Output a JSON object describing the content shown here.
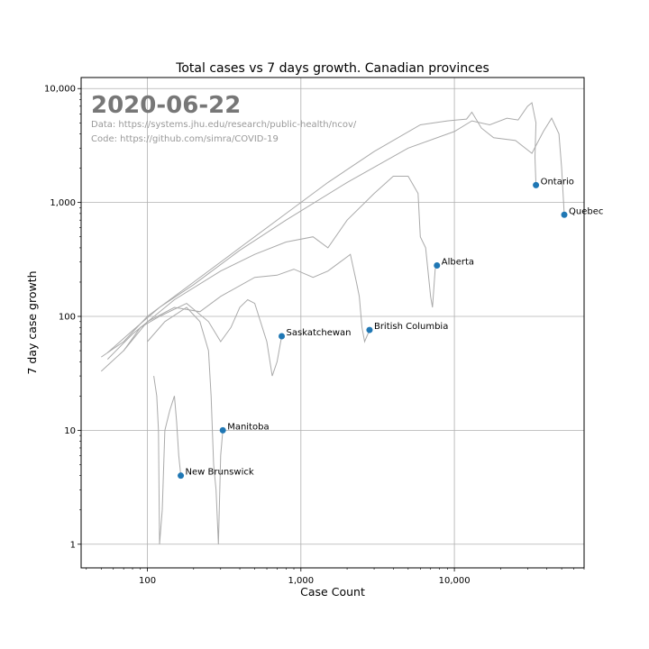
{
  "chart_data": {
    "type": "scatter",
    "title": "Total cases vs 7 days growth. Canadian provinces",
    "xlabel": "Case Count",
    "ylabel": "7 day case growth",
    "xscale": "log",
    "yscale": "log",
    "xlim": [
      37,
      70000
    ],
    "ylim": [
      0.62,
      12500
    ],
    "grid": true,
    "xticks": [
      {
        "value": 100,
        "label": "100"
      },
      {
        "value": 1000,
        "label": "1,000"
      },
      {
        "value": 10000,
        "label": "10,000"
      }
    ],
    "yticks": [
      {
        "value": 1,
        "label": "1"
      },
      {
        "value": 10,
        "label": "10"
      },
      {
        "value": 100,
        "label": "100"
      },
      {
        "value": 1000,
        "label": "1,000"
      },
      {
        "value": 10000,
        "label": "10,000"
      }
    ],
    "annotation": {
      "date": "2020-06-22",
      "data_source": "Data: https://systems.jhu.edu/research/public-health/ncov/",
      "code_source": "Code: https://github.com/simra/COVID-19"
    },
    "points": [
      {
        "name": "Ontario",
        "x": 34000,
        "y": 1420
      },
      {
        "name": "Quebec",
        "x": 52000,
        "y": 780
      },
      {
        "name": "Alberta",
        "x": 7700,
        "y": 280
      },
      {
        "name": "British Columbia",
        "x": 2800,
        "y": 76
      },
      {
        "name": "Saskatchewan",
        "x": 750,
        "y": 67
      },
      {
        "name": "Manitoba",
        "x": 310,
        "y": 10
      },
      {
        "name": "New Brunswick",
        "x": 165,
        "y": 4
      }
    ],
    "trajectories": [
      {
        "name": "Ontario",
        "points": [
          [
            55,
            48
          ],
          [
            80,
            75
          ],
          [
            120,
            120
          ],
          [
            200,
            190
          ],
          [
            400,
            380
          ],
          [
            800,
            700
          ],
          [
            2000,
            1500
          ],
          [
            5000,
            3000
          ],
          [
            10000,
            4200
          ],
          [
            13000,
            5200
          ],
          [
            17000,
            4800
          ],
          [
            22000,
            5500
          ],
          [
            26000,
            5300
          ],
          [
            30000,
            7000
          ],
          [
            32000,
            7500
          ],
          [
            34000,
            5000
          ],
          [
            33500,
            2500
          ],
          [
            34000,
            1420
          ]
        ]
      },
      {
        "name": "Quebec",
        "points": [
          [
            50,
            44
          ],
          [
            70,
            60
          ],
          [
            100,
            100
          ],
          [
            200,
            200
          ],
          [
            400,
            400
          ],
          [
            800,
            800
          ],
          [
            1500,
            1500
          ],
          [
            3000,
            2800
          ],
          [
            6000,
            4800
          ],
          [
            9000,
            5200
          ],
          [
            12000,
            5400
          ],
          [
            13000,
            6200
          ],
          [
            15000,
            4500
          ],
          [
            18000,
            3700
          ],
          [
            25000,
            3500
          ],
          [
            32000,
            2700
          ],
          [
            38000,
            4200
          ],
          [
            43000,
            5500
          ],
          [
            48000,
            4000
          ],
          [
            50000,
            2000
          ],
          [
            52000,
            780
          ]
        ]
      },
      {
        "name": "Alberta",
        "points": [
          [
            55,
            42
          ],
          [
            80,
            70
          ],
          [
            150,
            140
          ],
          [
            300,
            250
          ],
          [
            500,
            350
          ],
          [
            800,
            450
          ],
          [
            1200,
            500
          ],
          [
            1500,
            400
          ],
          [
            2000,
            700
          ],
          [
            3000,
            1200
          ],
          [
            4000,
            1700
          ],
          [
            5000,
            1700
          ],
          [
            5800,
            1200
          ],
          [
            6000,
            500
          ],
          [
            6500,
            400
          ],
          [
            7000,
            150
          ],
          [
            7200,
            120
          ],
          [
            7500,
            260
          ],
          [
            7700,
            280
          ]
        ]
      },
      {
        "name": "British Columbia",
        "points": [
          [
            50,
            33
          ],
          [
            70,
            50
          ],
          [
            100,
            90
          ],
          [
            150,
            120
          ],
          [
            220,
            110
          ],
          [
            300,
            150
          ],
          [
            500,
            220
          ],
          [
            700,
            230
          ],
          [
            900,
            260
          ],
          [
            1200,
            220
          ],
          [
            1500,
            250
          ],
          [
            1800,
            300
          ],
          [
            2100,
            350
          ],
          [
            2300,
            200
          ],
          [
            2400,
            150
          ],
          [
            2500,
            80
          ],
          [
            2600,
            60
          ],
          [
            2800,
            76
          ]
        ]
      },
      {
        "name": "Saskatchewan",
        "points": [
          [
            70,
            50
          ],
          [
            90,
            80
          ],
          [
            120,
            100
          ],
          [
            180,
            130
          ],
          [
            250,
            90
          ],
          [
            300,
            60
          ],
          [
            350,
            80
          ],
          [
            400,
            120
          ],
          [
            450,
            140
          ],
          [
            500,
            130
          ],
          [
            600,
            60
          ],
          [
            650,
            30
          ],
          [
            700,
            40
          ],
          [
            750,
            67
          ]
        ]
      },
      {
        "name": "Manitoba",
        "points": [
          [
            100,
            60
          ],
          [
            130,
            90
          ],
          [
            180,
            120
          ],
          [
            220,
            90
          ],
          [
            250,
            50
          ],
          [
            260,
            20
          ],
          [
            270,
            5
          ],
          [
            280,
            3
          ],
          [
            290,
            1
          ],
          [
            300,
            6
          ],
          [
            310,
            10
          ]
        ]
      },
      {
        "name": "New Brunswick",
        "points": [
          [
            110,
            30
          ],
          [
            115,
            20
          ],
          [
            118,
            10
          ],
          [
            120,
            1
          ],
          [
            125,
            2
          ],
          [
            130,
            10
          ],
          [
            140,
            15
          ],
          [
            150,
            20
          ],
          [
            155,
            12
          ],
          [
            160,
            6
          ],
          [
            165,
            4
          ]
        ]
      }
    ]
  }
}
